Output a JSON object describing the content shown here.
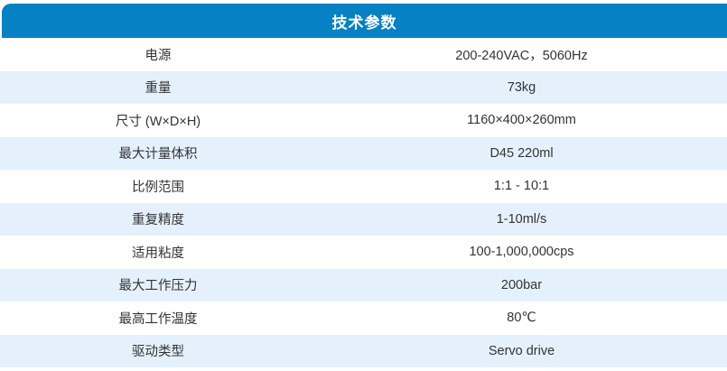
{
  "header": {
    "title": "技术参数"
  },
  "colors": {
    "header_bg": "#0681C3",
    "row_alt_bg": "#E4F1FC",
    "row_bg": "#FFFFFF",
    "text": "#333333",
    "header_text": "#FFFFFF"
  },
  "table": {
    "rows": [
      {
        "label": "电源",
        "value": "200-240VAC，5060Hz"
      },
      {
        "label": "重量",
        "value": "73kg"
      },
      {
        "label": "尺寸 (W×D×H)",
        "value": "1160×400×260mm"
      },
      {
        "label": "最大计量体积",
        "value": "D45 220ml"
      },
      {
        "label": "比例范围",
        "value": "1:1 - 10:1"
      },
      {
        "label": "重复精度",
        "value": "1-10ml/s"
      },
      {
        "label": "适用粘度",
        "value": "100-1,000,000cps"
      },
      {
        "label": "最大工作压力",
        "value": "200bar"
      },
      {
        "label": "最高工作温度",
        "value": "80℃"
      },
      {
        "label": "驱动类型",
        "value": "Servo drive"
      }
    ]
  }
}
